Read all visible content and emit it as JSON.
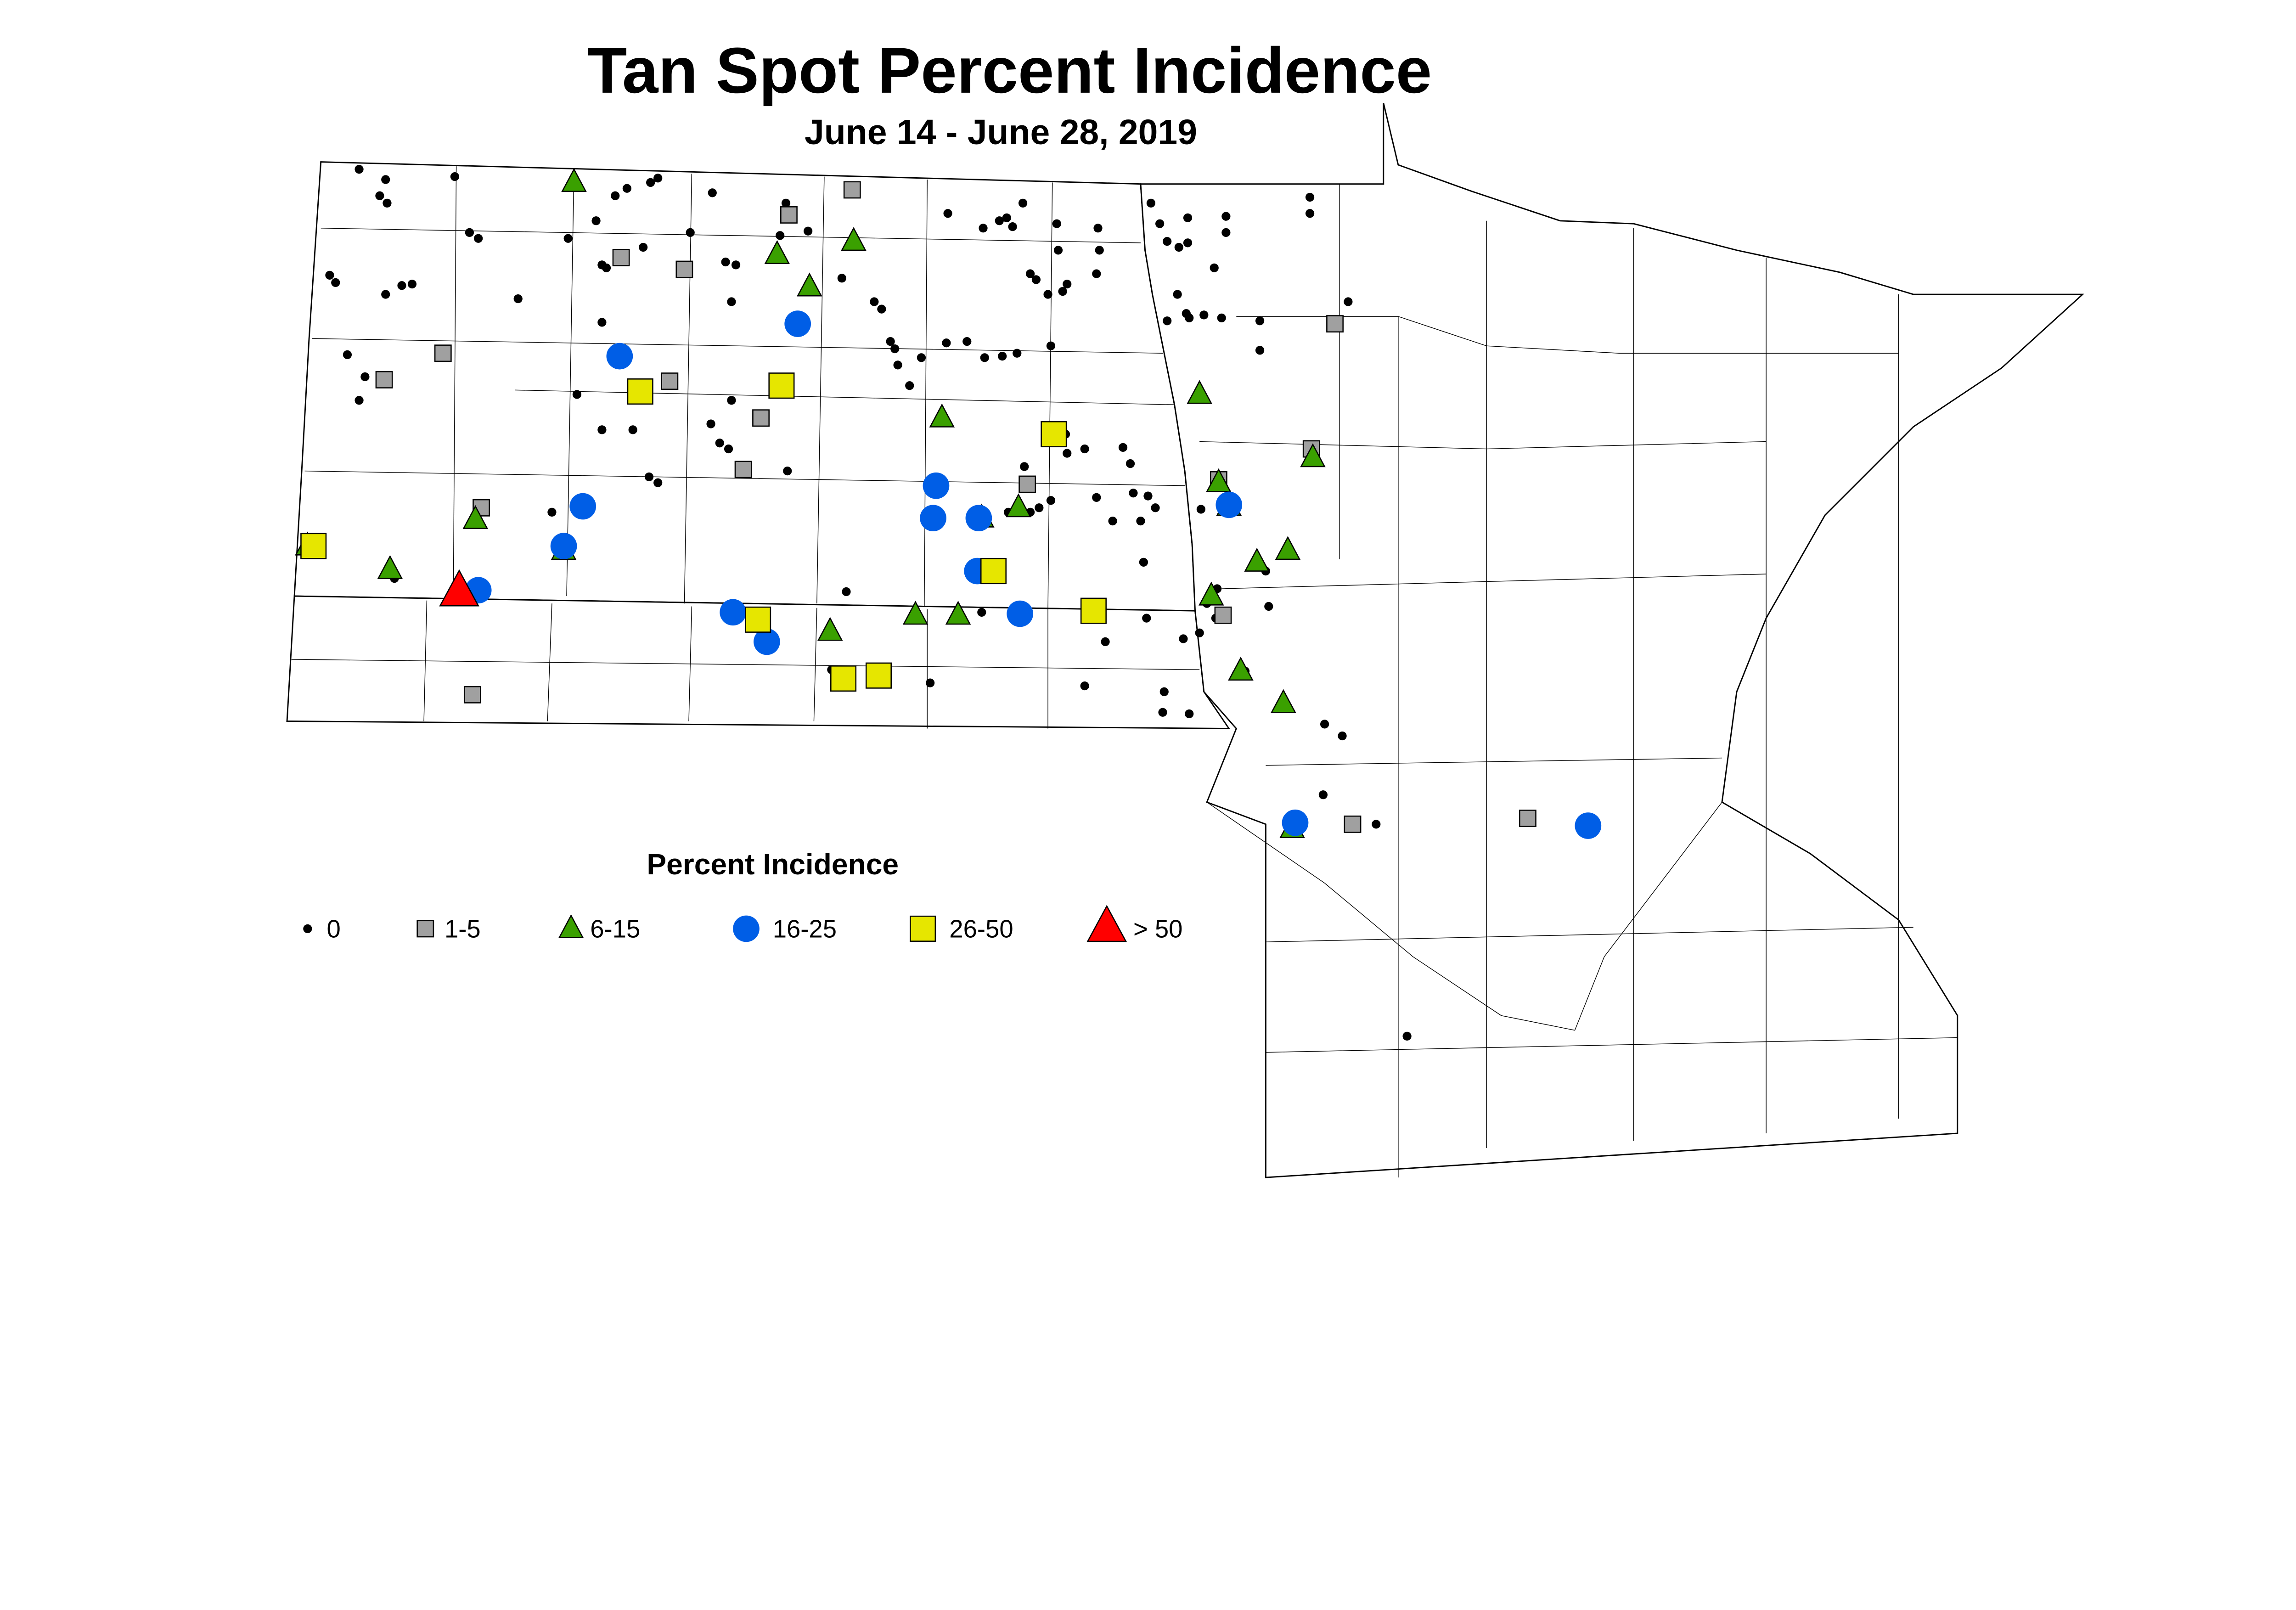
{
  "title": "Tan Spot Percent Incidence",
  "subtitle": "June 14 - June 28, 2019",
  "legend": {
    "title": "Percent Incidence",
    "items": [
      {
        "label": "0",
        "shape": "dot",
        "color": "#000000"
      },
      {
        "label": "1-5",
        "shape": "square",
        "color": "#a0a0a0"
      },
      {
        "label": "6-15",
        "shape": "triangle",
        "color": "#3aa000"
      },
      {
        "label": "16-25",
        "shape": "circle",
        "color": "#005ee6"
      },
      {
        "label": "26-50",
        "shape": "square",
        "color": "#e6e600"
      },
      {
        "label": "> 50",
        "shape": "triangle",
        "color": "#ff0000"
      }
    ]
  }
}
